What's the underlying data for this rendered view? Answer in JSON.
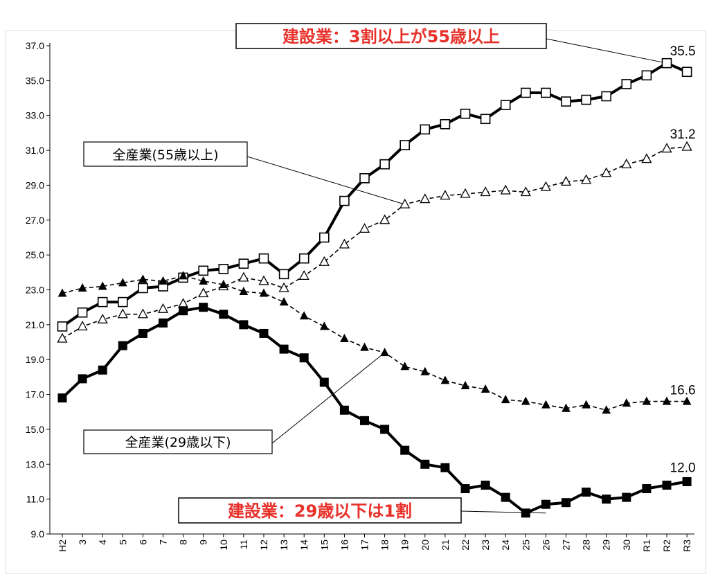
{
  "chart_data": {
    "type": "line",
    "categories": [
      "H2",
      "3",
      "4",
      "5",
      "6",
      "7",
      "8",
      "9",
      "10",
      "11",
      "12",
      "13",
      "14",
      "15",
      "16",
      "17",
      "18",
      "19",
      "20",
      "21",
      "22",
      "23",
      "24",
      "25",
      "26",
      "27",
      "28",
      "29",
      "30",
      "R1",
      "R2",
      "R3"
    ],
    "ylim": [
      9.0,
      37.0
    ],
    "yticks": [
      "9.0",
      "11.0",
      "13.0",
      "15.0",
      "17.0",
      "19.0",
      "21.0",
      "23.0",
      "25.0",
      "27.0",
      "29.0",
      "31.0",
      "33.0",
      "35.0",
      "37.0"
    ],
    "grid": false,
    "series": [
      {
        "key": "construction_55",
        "style": "solid",
        "marker": "open-square",
        "values": [
          20.9,
          21.7,
          22.3,
          22.3,
          23.1,
          23.2,
          23.7,
          24.1,
          24.2,
          24.5,
          24.8,
          23.9,
          24.8,
          26.0,
          28.1,
          29.4,
          30.2,
          31.3,
          32.2,
          32.5,
          33.1,
          32.8,
          33.6,
          34.3,
          34.3,
          33.8,
          33.9,
          34.1,
          34.8,
          35.3,
          36.0,
          35.5
        ]
      },
      {
        "key": "all_55",
        "style": "dashed",
        "marker": "open-triangle",
        "values": [
          20.2,
          20.9,
          21.3,
          21.6,
          21.6,
          21.9,
          22.2,
          22.8,
          23.2,
          23.7,
          23.5,
          23.1,
          23.8,
          24.6,
          25.6,
          26.5,
          27.0,
          27.9,
          28.2,
          28.4,
          28.5,
          28.6,
          28.7,
          28.6,
          28.9,
          29.2,
          29.3,
          29.7,
          30.2,
          30.5,
          31.1,
          31.2
        ]
      },
      {
        "key": "all_29",
        "style": "dashed",
        "marker": "filled-triangle",
        "values": [
          22.8,
          23.1,
          23.2,
          23.4,
          23.6,
          23.5,
          23.8,
          23.5,
          23.3,
          22.9,
          22.8,
          22.3,
          21.5,
          20.9,
          20.2,
          19.7,
          19.4,
          18.6,
          18.3,
          17.8,
          17.5,
          17.3,
          16.7,
          16.6,
          16.4,
          16.2,
          16.4,
          16.1,
          16.5,
          16.6,
          16.6,
          16.6
        ]
      },
      {
        "key": "construction_29",
        "style": "solid",
        "marker": "filled-square",
        "values": [
          16.8,
          17.9,
          18.4,
          19.8,
          20.5,
          21.1,
          21.8,
          22.0,
          21.6,
          21.0,
          20.5,
          19.6,
          19.1,
          17.7,
          16.1,
          15.5,
          15.0,
          13.8,
          13.0,
          12.8,
          11.6,
          11.8,
          11.1,
          10.2,
          10.7,
          10.8,
          11.4,
          11.0,
          11.1,
          11.6,
          11.8,
          12.0
        ]
      }
    ],
    "end_labels": {
      "construction_55": "35.5",
      "all_55": "31.2",
      "all_29": "16.6",
      "construction_29": "12.0"
    },
    "annotations": {
      "construction_55_callout": "建設業：3割以上が55歳以上",
      "all_55_callout": "全産業(55歳以上)",
      "all_29_callout": "全産業(29歳以下)",
      "construction_29_callout": "建設業：29歳以下は1割"
    },
    "colors": {
      "lines": "#000000",
      "callout_highlight_text": "#e8312a",
      "callout_plain_text": "#000000",
      "callout_border": "#000000"
    }
  }
}
